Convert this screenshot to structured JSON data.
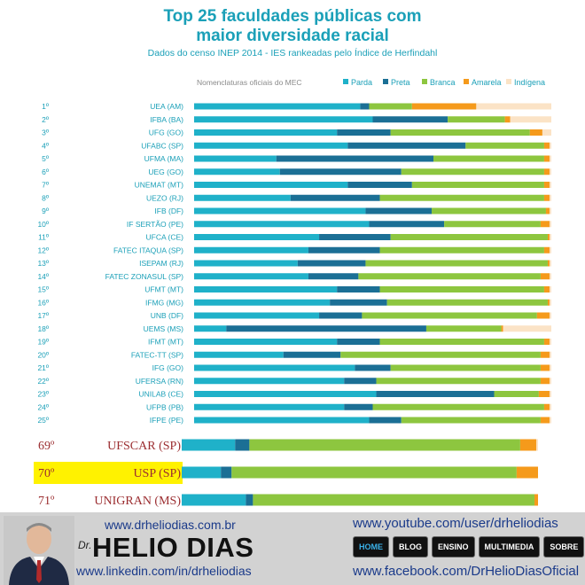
{
  "title_line1": "Top 25 faculdades públicas com",
  "title_line2": "maior diversidade racial",
  "subtitle": "Dados do censo INEP 2014 - IES rankeadas pelo Índice de Herfindahl",
  "chart_data": {
    "type": "bar",
    "stacked": true,
    "orientation": "horizontal",
    "legend_title": "Nomenclaturas oficiais do MEC",
    "legend_position": "top",
    "series": [
      {
        "name": "Parda",
        "color": "#1fb1c9"
      },
      {
        "name": "Preta",
        "color": "#1b6f95"
      },
      {
        "name": "Branca",
        "color": "#8dc63f"
      },
      {
        "name": "Amarela",
        "color": "#f59a1b"
      },
      {
        "name": "Indígena",
        "color": "#fbe3c6"
      }
    ],
    "rows": [
      {
        "rank": "1º",
        "name": "UEA (AM)",
        "values": [
          46.5,
          2.5,
          12,
          18,
          21
        ]
      },
      {
        "rank": "2º",
        "name": "IFBA (BA)",
        "values": [
          50,
          21,
          16,
          1.5,
          11.5
        ]
      },
      {
        "rank": "3º",
        "name": "UFG (GO)",
        "values": [
          40,
          15,
          39,
          3.5,
          2.5
        ]
      },
      {
        "rank": "4º",
        "name": "UFABC (SP)",
        "values": [
          43,
          33,
          22,
          1.5,
          0.5
        ]
      },
      {
        "rank": "5º",
        "name": "UFMA (MA)",
        "values": [
          23,
          44,
          31,
          1.5,
          0.5
        ]
      },
      {
        "rank": "6º",
        "name": "UEG (GO)",
        "values": [
          24,
          34,
          40,
          1.5,
          0.5
        ]
      },
      {
        "rank": "7º",
        "name": "UNEMAT (MT)",
        "values": [
          43,
          18,
          37,
          1.5,
          0.5
        ]
      },
      {
        "rank": "8º",
        "name": "UEZO (RJ)",
        "values": [
          27,
          25,
          46,
          1.5,
          0.5
        ]
      },
      {
        "rank": "9º",
        "name": "IFB (DF)",
        "values": [
          48,
          18.5,
          32,
          1,
          0.5
        ]
      },
      {
        "rank": "10º",
        "name": "IF SERTÃO (PE)",
        "values": [
          49,
          21,
          27,
          2.5,
          0.5
        ]
      },
      {
        "rank": "11º",
        "name": "UFCA (CE)",
        "values": [
          35,
          20,
          44,
          0.5,
          0.5
        ]
      },
      {
        "rank": "12º",
        "name": "FATEC ITAQUA (SP)",
        "values": [
          32,
          20,
          46,
          1.5,
          0.5
        ]
      },
      {
        "rank": "13º",
        "name": "ISEPAM (RJ)",
        "values": [
          29,
          19,
          51,
          0.5,
          0.5
        ]
      },
      {
        "rank": "14º",
        "name": "FATEC ZONASUL (SP)",
        "values": [
          32,
          14,
          51,
          2.5,
          0.5
        ]
      },
      {
        "rank": "15º",
        "name": "UFMT (MT)",
        "values": [
          40,
          12,
          46,
          1.5,
          0.5
        ]
      },
      {
        "rank": "16º",
        "name": "IFMG (MG)",
        "values": [
          38,
          16,
          45,
          0.5,
          0.5
        ]
      },
      {
        "rank": "17º",
        "name": "UNB (DF)",
        "values": [
          35,
          12,
          49,
          3.5,
          0.5
        ]
      },
      {
        "rank": "18º",
        "name": "UEMS (MS)",
        "values": [
          9,
          56,
          21,
          0.5,
          13.5
        ]
      },
      {
        "rank": "19º",
        "name": "IFMT (MT)",
        "values": [
          40,
          12,
          46,
          1.5,
          0.5
        ]
      },
      {
        "rank": "20º",
        "name": "FATEC-TT (SP)",
        "values": [
          25,
          16,
          56,
          2.5,
          0.5
        ]
      },
      {
        "rank": "21º",
        "name": "IFG (GO)",
        "values": [
          45,
          10,
          42,
          2.5,
          0.5
        ]
      },
      {
        "rank": "22º",
        "name": "UFERSA (RN)",
        "values": [
          42,
          9,
          46,
          2.5,
          0.5
        ]
      },
      {
        "rank": "23º",
        "name": "UNILAB (CE)",
        "values": [
          51,
          33,
          12.5,
          3,
          0.5
        ]
      },
      {
        "rank": "24º",
        "name": "UFPB (PB)",
        "values": [
          42,
          8,
          48,
          1.5,
          0.5
        ]
      },
      {
        "rank": "25º",
        "name": "IFPE (PE)",
        "values": [
          49,
          9,
          39,
          2.5,
          0.5
        ]
      }
    ],
    "extra_rows": [
      {
        "rank": "69º",
        "name": "UFSCAR (SP)",
        "values": [
          15,
          4,
          76,
          4.5,
          0.5
        ],
        "highlight": false
      },
      {
        "rank": "70º",
        "name": "USP (SP)",
        "values": [
          11,
          3,
          80,
          6,
          0
        ],
        "highlight": true
      },
      {
        "rank": "71º",
        "name": "UNIGRAN (MS)",
        "values": [
          18,
          2,
          79,
          1,
          0
        ],
        "highlight": false
      }
    ]
  },
  "footer": {
    "website": "www.drheliodias.com.br",
    "dr_prefix": "Dr.",
    "brand": "HELIO DIAS",
    "linkedin": "www.linkedin.com/in/drheliodias",
    "youtube": "www.youtube.com/user/drheliodias",
    "facebook": "www.facebook.com/DrHelioDiasOficial",
    "nav": [
      "HOME",
      "BLOG",
      "ENSINO",
      "MULTIMEDIA",
      "SOBRE"
    ]
  },
  "colors": {
    "accent": "#1ba0b8",
    "highlight": "#fff200",
    "extra_label": "#9b2d30"
  }
}
